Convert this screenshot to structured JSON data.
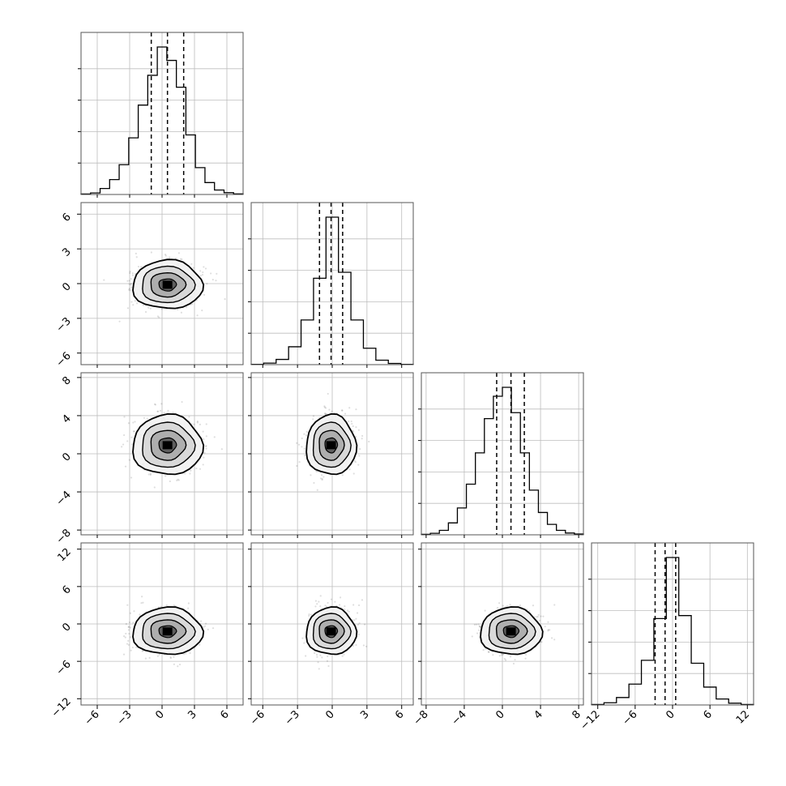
{
  "chart_data": {
    "type": "corner",
    "grid": true,
    "n_params": 4,
    "parameters": [
      {
        "id": "p0",
        "mean": 0.5,
        "sd": 1.5,
        "quantiles": [
          -1.0,
          0.5,
          2.0
        ],
        "range": [
          -7.5,
          7.5
        ],
        "ticks": [
          -6,
          -3,
          0,
          3,
          6
        ],
        "tick_labels": [
          "−6",
          "−3",
          "0",
          "3",
          "6"
        ],
        "hist": [
          0.003,
          0.01,
          0.04,
          0.1,
          0.2,
          0.38,
          0.6,
          0.8,
          0.99,
          0.9,
          0.72,
          0.4,
          0.18,
          0.08,
          0.03,
          0.012,
          0.004
        ]
      },
      {
        "id": "p1",
        "mean": -0.1,
        "sd": 1.0,
        "quantiles": [
          -1.1,
          -0.1,
          0.9
        ],
        "range": [
          -7.0,
          7.0
        ],
        "ticks": [
          -6,
          -3,
          0,
          3,
          6
        ],
        "tick_labels": [
          "−6",
          "−3",
          "0",
          "3",
          "6"
        ],
        "hist": [
          0.002,
          0.01,
          0.035,
          0.12,
          0.3,
          0.58,
          0.99,
          0.62,
          0.3,
          0.11,
          0.03,
          0.008,
          0.002
        ]
      },
      {
        "id": "p2",
        "mean": 0.9,
        "sd": 1.5,
        "quantiles": [
          -0.6,
          0.9,
          2.3
        ],
        "range": [
          -8.5,
          8.5
        ],
        "ticks": [
          -8,
          -4,
          0,
          4,
          8
        ],
        "tick_labels": [
          "−8",
          "−4",
          "0",
          "4",
          "8"
        ],
        "hist": [
          0.003,
          0.01,
          0.03,
          0.08,
          0.18,
          0.34,
          0.55,
          0.78,
          0.93,
          0.99,
          0.82,
          0.55,
          0.3,
          0.15,
          0.07,
          0.03,
          0.012,
          0.005
        ]
      },
      {
        "id": "p3",
        "mean": -1.2,
        "sd": 1.8,
        "quantiles": [
          -2.8,
          -1.2,
          0.5
        ],
        "range": [
          -13.0,
          13.0
        ],
        "ticks": [
          -12,
          -6,
          0,
          6,
          12
        ],
        "tick_labels": [
          "−12",
          "−6",
          "0",
          "6",
          "12"
        ],
        "hist": [
          0.003,
          0.015,
          0.05,
          0.14,
          0.3,
          0.58,
          0.99,
          0.6,
          0.28,
          0.12,
          0.04,
          0.012,
          0.003
        ]
      }
    ]
  }
}
